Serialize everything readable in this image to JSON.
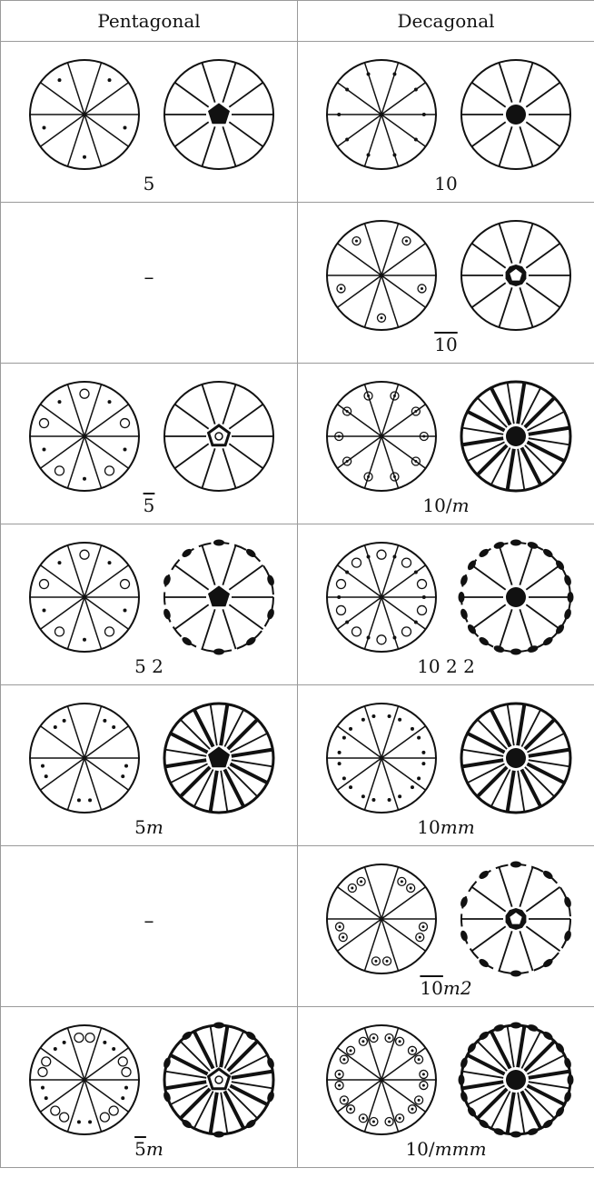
{
  "header": {
    "col_pentagonal": "Pentagonal",
    "col_decagonal": "Decagonal"
  },
  "rows": [
    {
      "pent": {
        "present": true,
        "sectors": 5,
        "poles": "dots",
        "center": "pentagon",
        "hollow_center": false,
        "dihedral": false,
        "mirrors": false,
        "label_pre": "",
        "label_bar": "",
        "label_post": "5",
        "label_it": ""
      },
      "dec": {
        "present": true,
        "sectors": 10,
        "poles": "dots",
        "center": "circle",
        "hollow_center": false,
        "dihedral": false,
        "mirrors": false,
        "label_pre": "",
        "label_bar": "",
        "label_post": "10",
        "label_it": ""
      }
    },
    {
      "pent": {
        "present": false,
        "dash": "–"
      },
      "dec": {
        "present": true,
        "sectors": 5,
        "poles": "circledots",
        "center": "gear",
        "hollow_center": false,
        "dihedral": false,
        "mirrors": false,
        "label_pre": "",
        "label_bar": "10",
        "label_post": "",
        "label_it": ""
      }
    },
    {
      "pent": {
        "present": true,
        "sectors": 5,
        "poles": "dots-and-circles",
        "center": "pentagon",
        "hollow_center": true,
        "dihedral": false,
        "mirrors": false,
        "label_pre": "",
        "label_bar": "5",
        "label_post": "",
        "label_it": ""
      },
      "dec": {
        "present": true,
        "sectors": 10,
        "poles": "circledots",
        "center": "circle",
        "hollow_center": false,
        "dihedral": false,
        "mirrors": true,
        "label_pre": "10/",
        "label_bar": "",
        "label_post": "",
        "label_it": "m"
      }
    },
    {
      "pent": {
        "present": true,
        "sectors": 5,
        "poles": "dots-and-circles",
        "center": "pentagon",
        "hollow_center": false,
        "dihedral": true,
        "mirrors": false,
        "label_pre": "5 2",
        "label_bar": "",
        "label_post": "",
        "label_it": ""
      },
      "dec": {
        "present": true,
        "sectors": 10,
        "poles": "dots-and-circles",
        "center": "circle",
        "hollow_center": false,
        "dihedral": true,
        "mirrors": false,
        "label_pre": "10 2 2",
        "label_bar": "",
        "label_post": "",
        "label_it": ""
      }
    },
    {
      "pent": {
        "present": true,
        "sectors": 5,
        "poles": "dot-pairs",
        "center": "pentagon",
        "hollow_center": false,
        "dihedral": false,
        "mirrors": true,
        "label_pre": "5",
        "label_bar": "",
        "label_post": "",
        "label_it": "m"
      },
      "dec": {
        "present": true,
        "sectors": 10,
        "poles": "dot-pairs",
        "center": "circle",
        "hollow_center": false,
        "dihedral": false,
        "mirrors": true,
        "label_pre": "10",
        "label_bar": "",
        "label_post": "",
        "label_it": "mm"
      }
    },
    {
      "pent": {
        "present": false,
        "dash": "–"
      },
      "dec": {
        "present": true,
        "sectors": 5,
        "poles": "circledot-pairs",
        "center": "gear",
        "hollow_center": false,
        "dihedral": true,
        "mirrors": false,
        "label_pre": "",
        "label_bar": "10",
        "label_post": "",
        "label_it": "m2"
      }
    },
    {
      "pent": {
        "present": true,
        "sectors": 5,
        "poles": "dot-and-circle-pairs",
        "center": "pentagon",
        "hollow_center": true,
        "dihedral": true,
        "mirrors": true,
        "label_pre": "",
        "label_bar": "5",
        "label_post": "",
        "label_it": "m"
      },
      "dec": {
        "present": true,
        "sectors": 10,
        "poles": "circledot-pairs",
        "center": "circle",
        "hollow_center": false,
        "dihedral": true,
        "mirrors": true,
        "label_pre": "10/",
        "label_bar": "",
        "label_post": "",
        "label_it": "mmm"
      }
    }
  ]
}
